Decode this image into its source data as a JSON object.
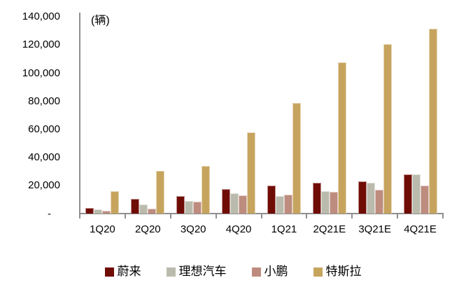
{
  "chart_data": {
    "type": "bar",
    "title": "",
    "unit_label": "(辆)",
    "xlabel": "",
    "ylabel": "辆",
    "ylim": [
      0,
      140000
    ],
    "y_tick_step": 20000,
    "grid": false,
    "legend_position": "bottom",
    "axis_color": "#8f8f8f",
    "text_color": "#000000",
    "categories": [
      "1Q20",
      "2Q20",
      "3Q20",
      "4Q20",
      "1Q21",
      "2Q21E",
      "3Q21E",
      "4Q21E"
    ],
    "y_ticks": [
      {
        "value": 140000,
        "label": "140,000"
      },
      {
        "value": 120000,
        "label": "120,000"
      },
      {
        "value": 100000,
        "label": "100,000"
      },
      {
        "value": 80000,
        "label": "80,000"
      },
      {
        "value": 60000,
        "label": "60,000"
      },
      {
        "value": 40000,
        "label": "40,000"
      },
      {
        "value": 20000,
        "label": "20,000"
      },
      {
        "value": 0,
        "label": "-"
      }
    ],
    "series": [
      {
        "name": "蔚来",
        "color": "#700c06",
        "values": [
          3800,
          10400,
          12200,
          17400,
          20000,
          21900,
          22700,
          27700
        ]
      },
      {
        "name": "理想汽车",
        "color": "#babbac",
        "values": [
          3000,
          6400,
          9000,
          14600,
          12500,
          16000,
          22000,
          27900
        ]
      },
      {
        "name": "小鹏",
        "color": "#bd8c7e",
        "values": [
          2200,
          3300,
          8500,
          13100,
          13300,
          15500,
          16900,
          19700
        ]
      },
      {
        "name": "特斯拉",
        "color": "#c7a45e",
        "values": [
          16000,
          30500,
          34100,
          57800,
          78600,
          107300,
          120700,
          131300
        ]
      }
    ]
  }
}
